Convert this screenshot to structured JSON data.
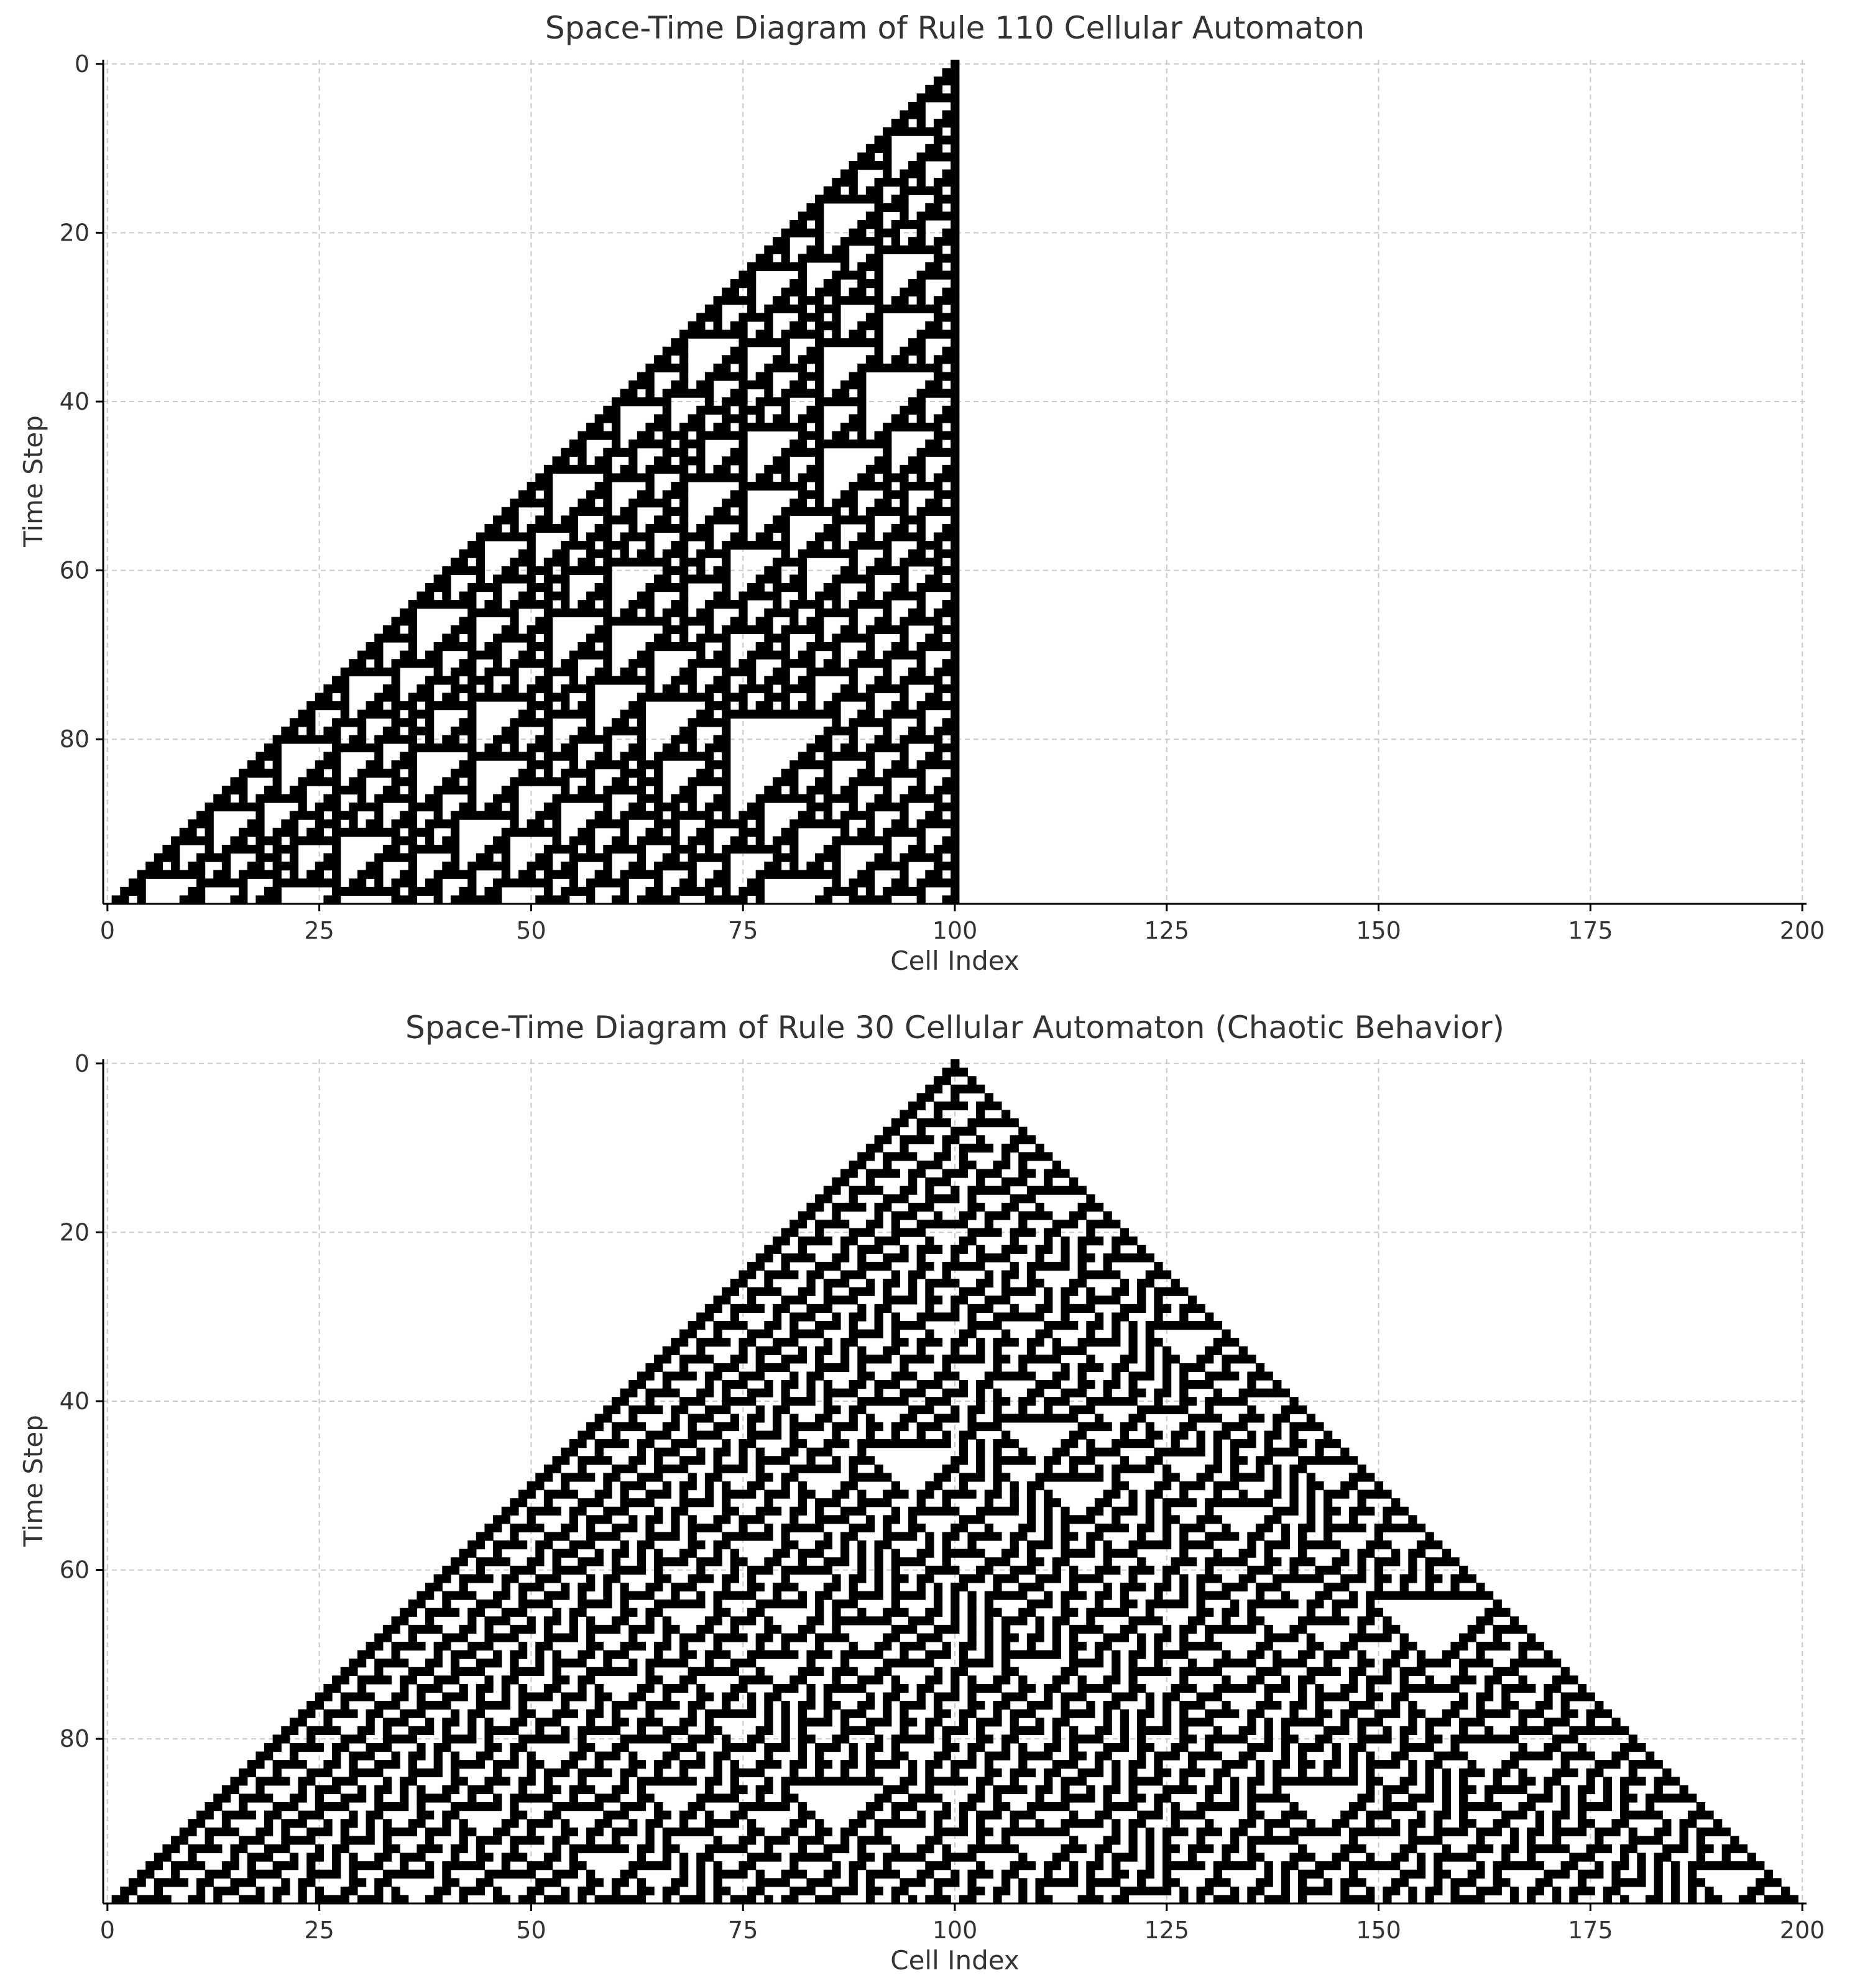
{
  "chart_data": [
    {
      "type": "heatmap",
      "title": "Space-Time Diagram of Rule 110 Cellular Automaton",
      "xlabel": "Cell Index",
      "ylabel": "Time Step",
      "rule": 110,
      "cells": 201,
      "steps": 100,
      "initial_active_cell": 100,
      "xlim": [
        0,
        200
      ],
      "ylim": [
        0,
        99
      ],
      "y_inverted": true,
      "xticks": [
        0,
        25,
        50,
        75,
        100,
        125,
        150,
        175,
        200
      ],
      "yticks": [
        0,
        20,
        40,
        60,
        80
      ],
      "xtick_labels": [
        "0",
        "25",
        "50",
        "75",
        "100",
        "125",
        "150",
        "175",
        "200"
      ],
      "ytick_labels": [
        "0",
        "20",
        "40",
        "60",
        "80"
      ],
      "grid": true,
      "colormap": {
        "active": "#000000",
        "inactive": "#ffffff"
      }
    },
    {
      "type": "heatmap",
      "title": "Space-Time Diagram of Rule 30 Cellular Automaton (Chaotic Behavior)",
      "xlabel": "Cell Index",
      "ylabel": "Time Step",
      "rule": 30,
      "cells": 201,
      "steps": 100,
      "initial_active_cell": 100,
      "xlim": [
        0,
        200
      ],
      "ylim": [
        0,
        99
      ],
      "y_inverted": true,
      "xticks": [
        0,
        25,
        50,
        75,
        100,
        125,
        150,
        175,
        200
      ],
      "yticks": [
        0,
        20,
        40,
        60,
        80
      ],
      "xtick_labels": [
        "0",
        "25",
        "50",
        "75",
        "100",
        "125",
        "150",
        "175",
        "200"
      ],
      "ytick_labels": [
        "0",
        "20",
        "40",
        "60",
        "80"
      ],
      "grid": true,
      "colormap": {
        "active": "#000000",
        "inactive": "#ffffff"
      }
    }
  ]
}
